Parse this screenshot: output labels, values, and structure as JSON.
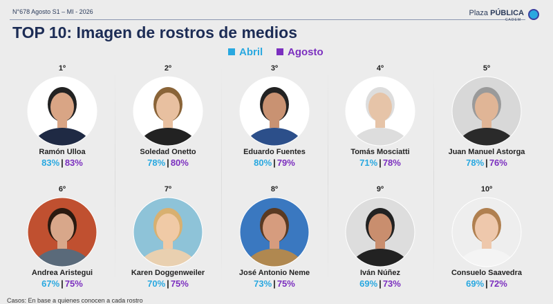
{
  "header": {
    "issue": "N°678 Agosto S1 – MI - 2026",
    "brand_a": "Plaza",
    "brand_b": "PÚBLICA",
    "brand_sub": "CADEM"
  },
  "title": "TOP 10: Imagen de rostros de medios",
  "legend": [
    "Abril",
    "Agosto"
  ],
  "separator": "|",
  "people": [
    {
      "rank": "1º",
      "name": "Ramón Ulloa",
      "abril": "83%",
      "agosto": "83%"
    },
    {
      "rank": "2º",
      "name": "Soledad Onetto",
      "abril": "78%",
      "agosto": "80%"
    },
    {
      "rank": "3º",
      "name": "Eduardo Fuentes",
      "abril": "80%",
      "agosto": "79%"
    },
    {
      "rank": "4º",
      "name": "Tomás Mosciatti",
      "abril": "71%",
      "agosto": "78%"
    },
    {
      "rank": "5º",
      "name": "Juan Manuel Astorga",
      "abril": "78%",
      "agosto": "76%"
    },
    {
      "rank": "6º",
      "name": "Andrea Aristegui",
      "abril": "67%",
      "agosto": "75%"
    },
    {
      "rank": "7º",
      "name": "Karen Doggenweiler",
      "abril": "70%",
      "agosto": "75%"
    },
    {
      "rank": "8º",
      "name": "José Antonio Neme",
      "abril": "73%",
      "agosto": "75%"
    },
    {
      "rank": "9º",
      "name": "Iván Núñez",
      "abril": "69%",
      "agosto": "73%"
    },
    {
      "rank": "10º",
      "name": "Consuelo Saavedra",
      "abril": "69%",
      "agosto": "72%"
    }
  ],
  "footnote": "Casos: En base a quienes conocen a cada rostro"
}
